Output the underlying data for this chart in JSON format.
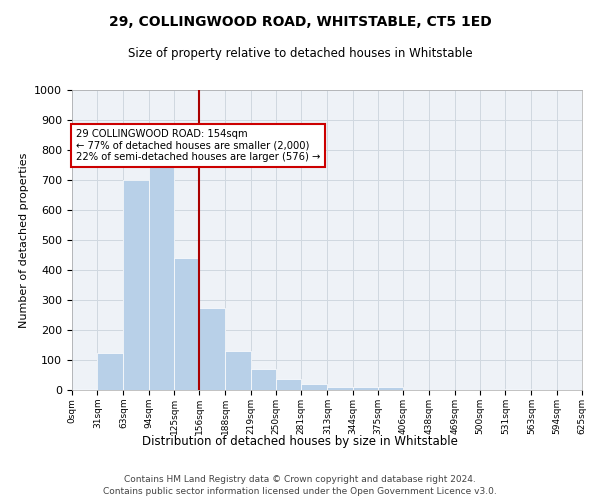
{
  "title1": "29, COLLINGWOOD ROAD, WHITSTABLE, CT5 1ED",
  "title2": "Size of property relative to detached houses in Whitstable",
  "xlabel": "Distribution of detached houses by size in Whitstable",
  "ylabel": "Number of detached properties",
  "bin_edges": [
    0,
    31,
    63,
    94,
    125,
    156,
    188,
    219,
    250,
    281,
    313,
    344,
    375,
    406,
    438,
    469,
    500,
    531,
    563,
    594,
    625
  ],
  "bar_heights": [
    5,
    125,
    700,
    775,
    440,
    275,
    130,
    70,
    38,
    20,
    10,
    10,
    10,
    0,
    0,
    0,
    0,
    5,
    0,
    0
  ],
  "bar_color": "#b8d0e8",
  "bar_edgecolor": "#b8d0e8",
  "grid_color": "#d0d8e0",
  "background_color": "#eef2f7",
  "property_line_x": 156,
  "property_line_color": "#aa0000",
  "annotation_text": "29 COLLINGWOOD ROAD: 154sqm\n← 77% of detached houses are smaller (2,000)\n22% of semi-detached houses are larger (576) →",
  "annotation_box_color": "#ffffff",
  "annotation_box_edgecolor": "#cc0000",
  "ylim": [
    0,
    1000
  ],
  "yticks": [
    0,
    100,
    200,
    300,
    400,
    500,
    600,
    700,
    800,
    900,
    1000
  ],
  "tick_labels": [
    "0sqm",
    "31sqm",
    "63sqm",
    "94sqm",
    "125sqm",
    "156sqm",
    "188sqm",
    "219sqm",
    "250sqm",
    "281sqm",
    "313sqm",
    "344sqm",
    "375sqm",
    "406sqm",
    "438sqm",
    "469sqm",
    "500sqm",
    "531sqm",
    "563sqm",
    "594sqm",
    "625sqm"
  ],
  "footer1": "Contains HM Land Registry data © Crown copyright and database right 2024.",
  "footer2": "Contains public sector information licensed under the Open Government Licence v3.0."
}
